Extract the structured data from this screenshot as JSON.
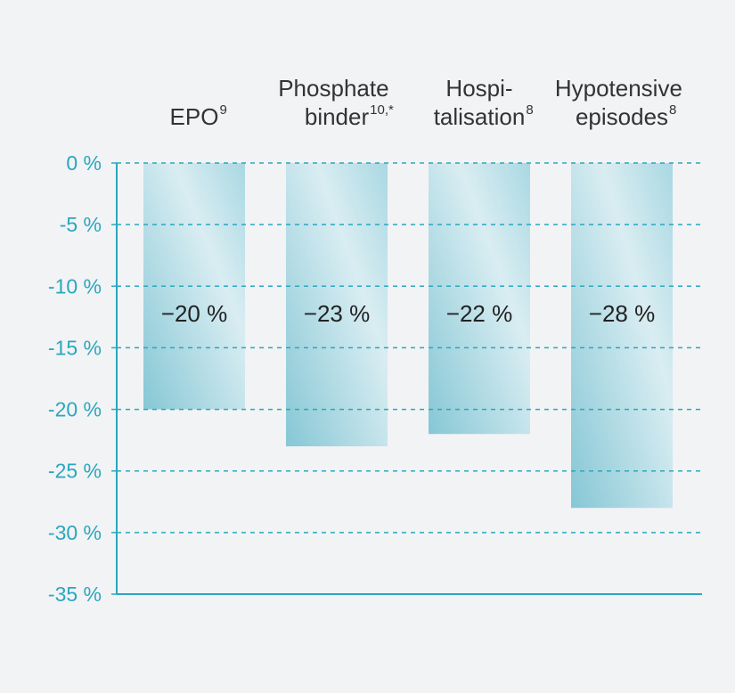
{
  "chart_data": {
    "type": "bar",
    "categories": [
      "EPO",
      "Phosphate binder",
      "Hospi-talisation",
      "Hypotensive episodes"
    ],
    "category_notes": [
      "9",
      "10,*",
      "8",
      "8"
    ],
    "values": [
      -20,
      -23,
      -22,
      -28
    ],
    "value_labels": [
      "−20 %",
      "−23 %",
      "−22 %",
      "−28 %"
    ],
    "color": "#9fd3de",
    "ylim": [
      -35,
      0
    ],
    "yticks": [
      {
        "value": 0,
        "label": "0 %"
      },
      {
        "value": -5,
        "label": "-5 %"
      },
      {
        "value": -10,
        "label": "-10 %"
      },
      {
        "value": -15,
        "label": "-15 %"
      },
      {
        "value": -20,
        "label": "-20 %"
      },
      {
        "value": -25,
        "label": "-25 %"
      },
      {
        "value": -30,
        "label": "-30 %"
      },
      {
        "value": -35,
        "label": "-35 %"
      }
    ],
    "grid": true
  }
}
